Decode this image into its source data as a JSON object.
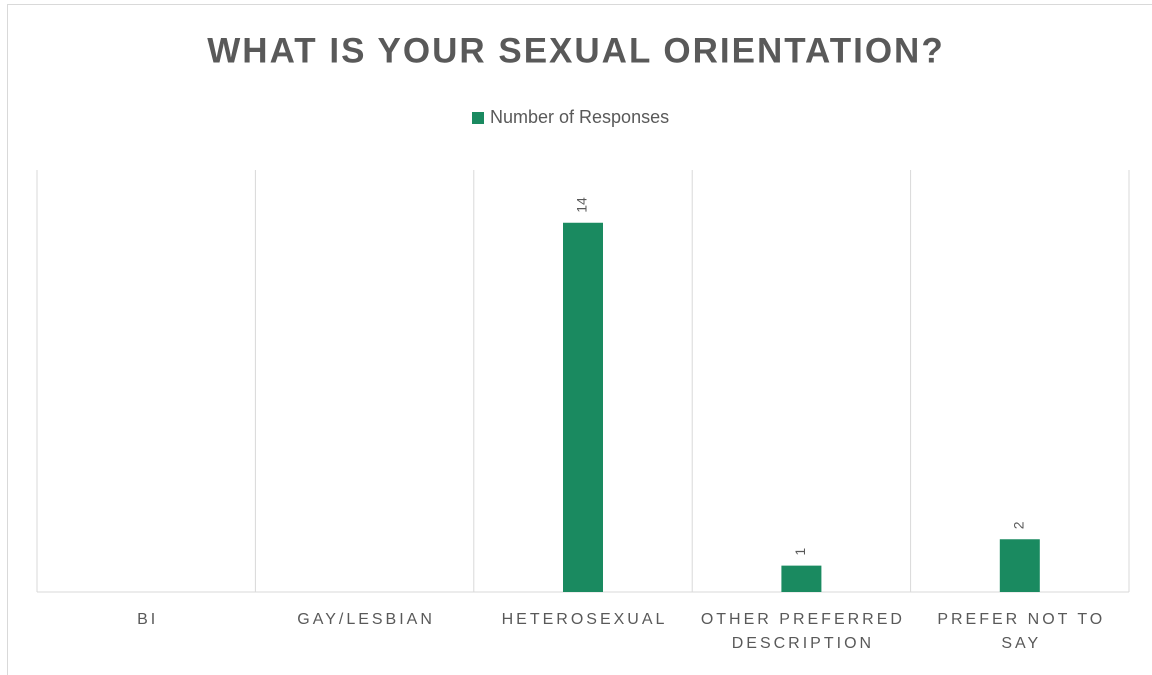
{
  "chart_data": {
    "type": "bar",
    "title": "WHAT IS YOUR SEXUAL ORIENTATION?",
    "categories": [
      "BI",
      "GAY/LESBIAN",
      "HETEROSEXUAL",
      "OTHER PREFERRED DESCRIPTION",
      "PREFER NOT TO SAY"
    ],
    "series": [
      {
        "name": "Number of Responses",
        "color": "#1a8a60",
        "values": [
          null,
          null,
          14,
          1,
          2
        ]
      }
    ],
    "ylim": [
      0,
      16
    ],
    "legend": "top"
  }
}
